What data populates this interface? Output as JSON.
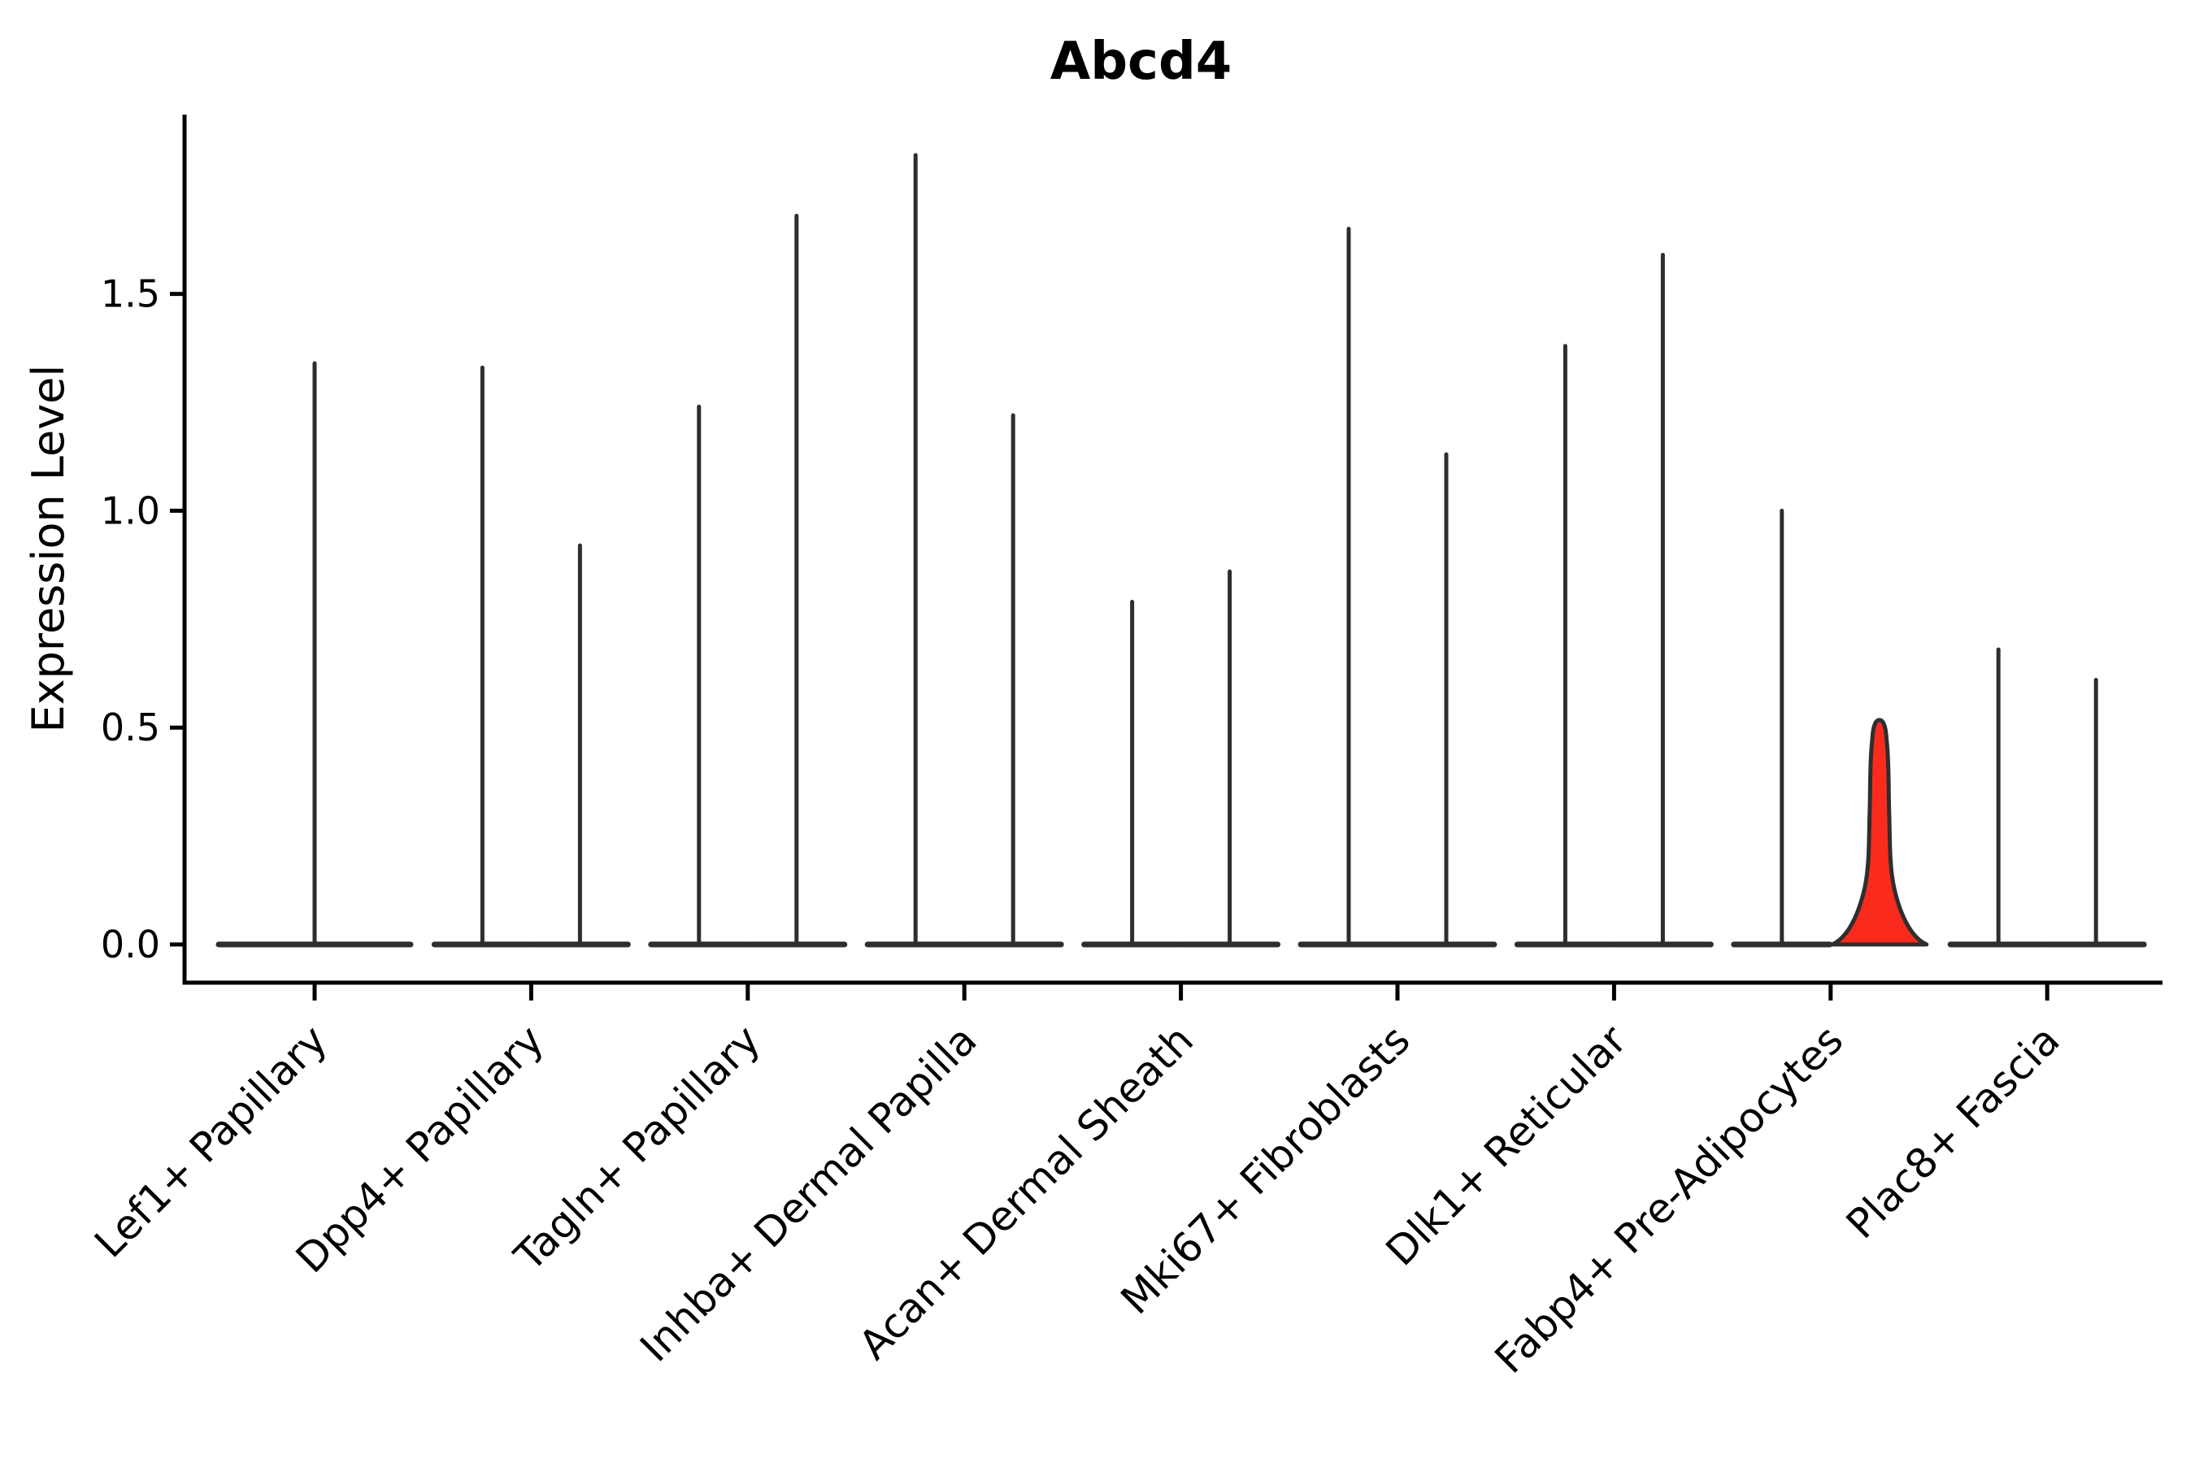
{
  "title": "Abcd4",
  "chart_data": {
    "type": "violin",
    "title": "Abcd4",
    "xlabel": "",
    "ylabel": "Expression Level",
    "ylim": [
      -0.09,
      1.91
    ],
    "grid": false,
    "legend": null,
    "yticks": {
      "values": [
        0,
        0.5,
        1.0,
        1.5
      ],
      "labels": [
        "0.0",
        "0.5",
        "1.0",
        "1.5"
      ]
    },
    "categories": [
      "Lef1+ Papillary",
      "Dpp4+ Papillary",
      "Tagln+ Papillary",
      "Inhba+ Dermal Papilla",
      "Acan+ Dermal Sheath",
      "Mki67+ Fibroblasts",
      "Dlk1+ Reticular",
      "Fabp4+ Pre-Adipocytes",
      "Plac8+ Fascia"
    ],
    "violins": [
      {
        "category": "Lef1+ Papillary",
        "slot": "center",
        "max": 1.34,
        "highlighted": false
      },
      {
        "category": "Dpp4+ Papillary",
        "slot": "left",
        "max": 1.33,
        "highlighted": false
      },
      {
        "category": "Dpp4+ Papillary",
        "slot": "right",
        "max": 0.92,
        "highlighted": false
      },
      {
        "category": "Tagln+ Papillary",
        "slot": "left",
        "max": 1.24,
        "highlighted": false
      },
      {
        "category": "Tagln+ Papillary",
        "slot": "right",
        "max": 1.68,
        "highlighted": false
      },
      {
        "category": "Inhba+ Dermal Papilla",
        "slot": "left",
        "max": 1.82,
        "highlighted": false
      },
      {
        "category": "Inhba+ Dermal Papilla",
        "slot": "right",
        "max": 1.22,
        "highlighted": false
      },
      {
        "category": "Acan+ Dermal Sheath",
        "slot": "left",
        "max": 0.79,
        "highlighted": false
      },
      {
        "category": "Acan+ Dermal Sheath",
        "slot": "right",
        "max": 0.86,
        "highlighted": false
      },
      {
        "category": "Mki67+ Fibroblasts",
        "slot": "left",
        "max": 1.65,
        "highlighted": false
      },
      {
        "category": "Mki67+ Fibroblasts",
        "slot": "right",
        "max": 1.13,
        "highlighted": false
      },
      {
        "category": "Dlk1+ Reticular",
        "slot": "left",
        "max": 1.38,
        "highlighted": false
      },
      {
        "category": "Dlk1+ Reticular",
        "slot": "right",
        "max": 1.59,
        "highlighted": false
      },
      {
        "category": "Fabp4+ Pre-Adipocytes",
        "slot": "left",
        "max": 1.0,
        "highlighted": false
      },
      {
        "category": "Fabp4+ Pre-Adipocytes",
        "slot": "right",
        "max": 0.51,
        "highlighted": true
      },
      {
        "category": "Plac8+ Fascia",
        "slot": "left",
        "max": 0.68,
        "highlighted": false
      },
      {
        "category": "Plac8+ Fascia",
        "slot": "right",
        "max": 0.61,
        "highlighted": false
      }
    ],
    "colors": {
      "violin_line": "#2e2e2e",
      "highlight_fill": "#fa2b1d",
      "axis": "#000000",
      "text": "#000000",
      "background": "#ffffff"
    }
  }
}
